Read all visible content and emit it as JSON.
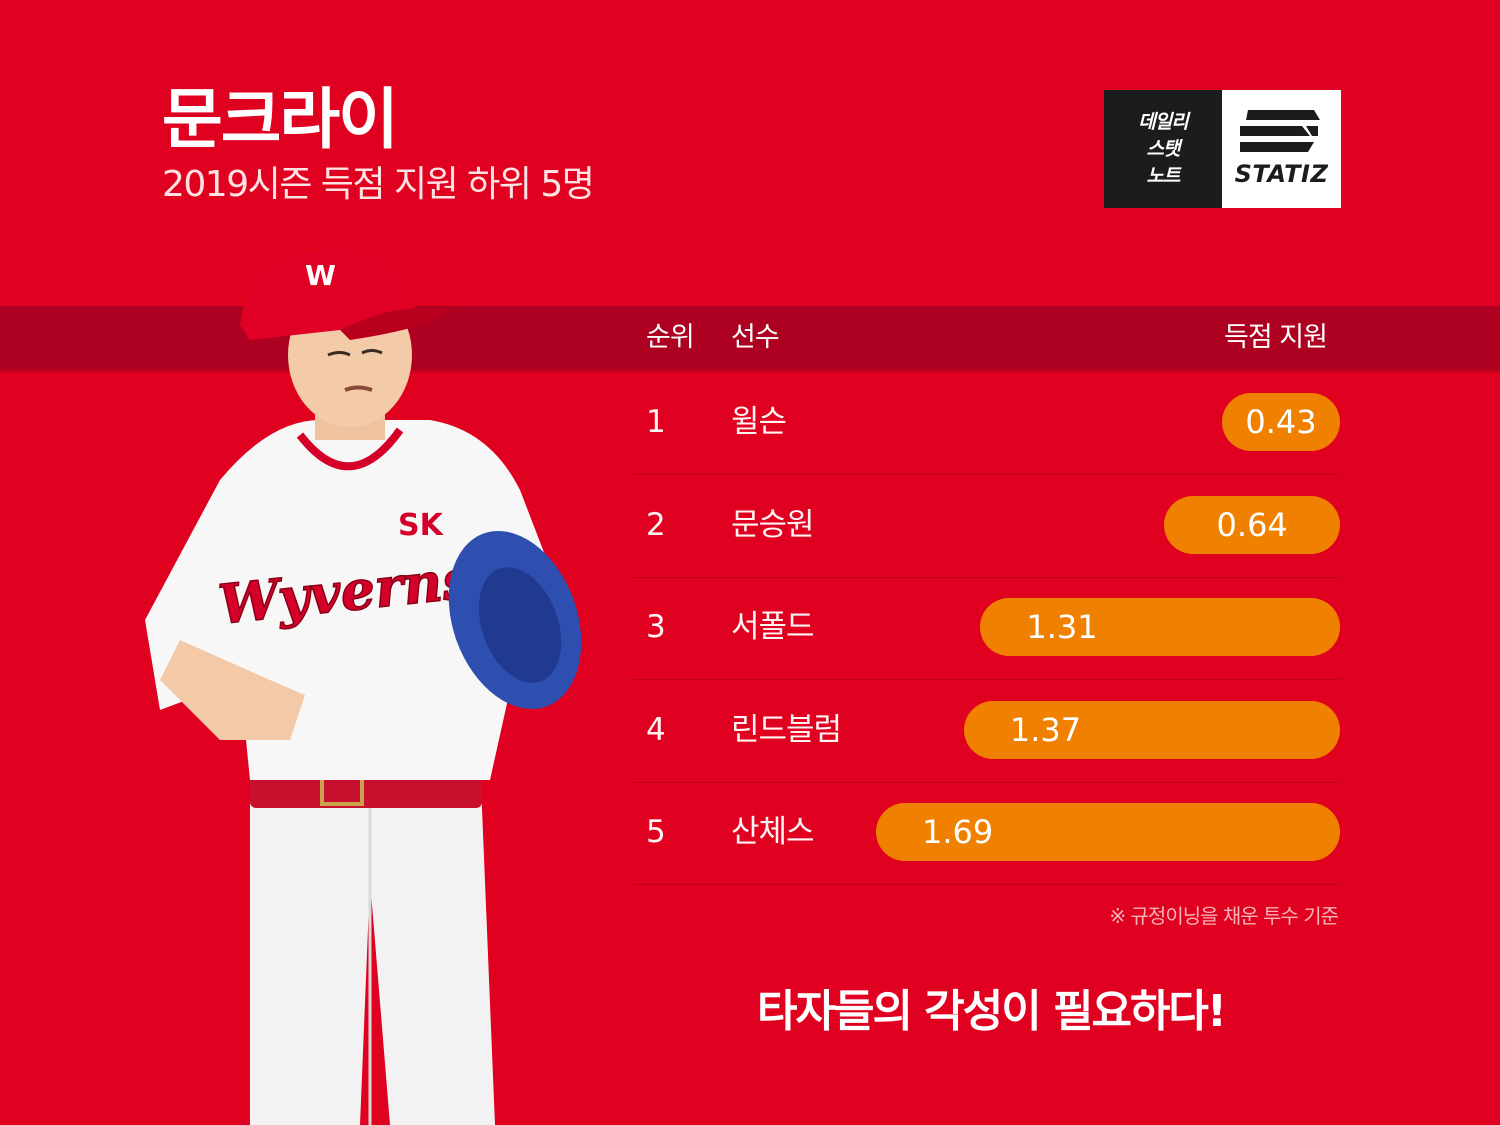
{
  "header": {
    "title": "문크라이",
    "subtitle": "2019시즌 득점 지원 하위 5명"
  },
  "logo": {
    "lines": [
      "데일리",
      "스탯",
      "노트"
    ],
    "brand": "STATIZ"
  },
  "table": {
    "col_rank": "순위",
    "col_player": "선수",
    "col_value": "득점 지원"
  },
  "chart_data": {
    "type": "bar",
    "orientation": "horizontal",
    "categories": [
      "윌슨",
      "문승원",
      "서폴드",
      "린드블럼",
      "산체스"
    ],
    "ranks": [
      "1",
      "2",
      "3",
      "4",
      "5"
    ],
    "values": [
      0.43,
      0.64,
      1.31,
      1.37,
      1.69
    ],
    "labels": [
      "0.43",
      "0.64",
      "1.31",
      "1.37",
      "1.69"
    ],
    "title": "문크라이",
    "subtitle": "2019시즌 득점 지원 하위 5명",
    "bar_color": "#f08000",
    "grid": false
  },
  "footnote": "※ 규정이닝을 채운 투수 기준",
  "tagline": "타자들의 각성이 필요하다!",
  "colors": {
    "background": "#e0001f",
    "header_band": "#ae0020",
    "bar": "#f08000"
  },
  "figure": {
    "cap_logo": "W",
    "jersey_team": "SK",
    "jersey_name": "Wyverns"
  }
}
